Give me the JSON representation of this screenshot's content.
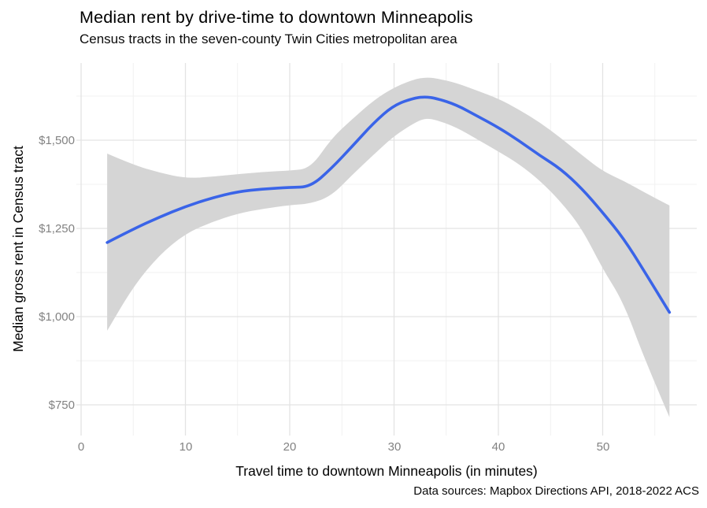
{
  "figure": {
    "title": "Median rent by drive-time to downtown Minneapolis",
    "subtitle": "Census tracts in the seven-county Twin Cities metropolitan area",
    "caption": "Data sources: Mapbox Directions API, 2018-2022 ACS"
  },
  "chart_data": {
    "type": "line",
    "title": "Median rent by drive-time to downtown Minneapolis",
    "subtitle": "Census tracts in the seven-county Twin Cities metropolitan area",
    "caption": "Data sources: Mapbox Directions API, 2018-2022 ACS",
    "xlabel": "Travel time to downtown Minneapolis (in minutes)",
    "ylabel": "Median gross rent in Census tract",
    "xlim": [
      -0.5,
      59
    ],
    "ylim": [
      660,
      1720
    ],
    "grid": "major+minor",
    "legend": "none",
    "x_ticks": {
      "major_values": [
        0,
        10,
        20,
        30,
        40,
        50
      ],
      "minor_values": [
        5,
        15,
        25,
        35,
        45,
        55
      ],
      "labels": [
        "0",
        "10",
        "20",
        "30",
        "40",
        "50"
      ]
    },
    "y_ticks": {
      "major_values": [
        750,
        1000,
        1250,
        1500
      ],
      "minor_values": [
        875,
        1125,
        1375,
        1625
      ],
      "labels": [
        "$750",
        "$1,000",
        "$1,250",
        "$1,500"
      ]
    },
    "x": [
      2.5,
      5,
      7.5,
      10,
      12.5,
      15,
      17.5,
      20,
      22,
      24,
      26,
      28,
      30,
      32,
      33,
      34,
      36,
      38,
      40,
      42,
      44,
      46,
      48,
      50,
      52,
      54,
      56.4
    ],
    "series": [
      {
        "name": "loess-smoothed median rent",
        "type": "line",
        "values": [
          1210,
          1248,
          1282,
          1312,
          1336,
          1354,
          1362,
          1366,
          1368,
          1420,
          1483,
          1548,
          1600,
          1620,
          1623,
          1619,
          1600,
          1568,
          1536,
          1498,
          1456,
          1418,
          1363,
          1295,
          1222,
          1128,
          1012
        ]
      },
      {
        "name": "confidence band",
        "type": "band",
        "upper": [
          1462,
          1430,
          1408,
          1392,
          1396,
          1404,
          1410,
          1414,
          1420,
          1505,
          1560,
          1612,
          1650,
          1673,
          1678,
          1676,
          1662,
          1640,
          1618,
          1586,
          1550,
          1506,
          1458,
          1412,
          1385,
          1352,
          1315
        ],
        "lower": [
          960,
          1085,
          1175,
          1235,
          1268,
          1292,
          1306,
          1316,
          1320,
          1342,
          1402,
          1458,
          1512,
          1550,
          1562,
          1558,
          1536,
          1502,
          1468,
          1432,
          1385,
          1325,
          1250,
          1135,
          1040,
          880,
          715
        ]
      }
    ],
    "colors": {
      "line": "#3A64E8",
      "band": "#D5D5D5",
      "grid_major": "#E3E3E3",
      "grid_minor": "#F1F1F1",
      "tick_text": "#828282",
      "text": "#000000"
    }
  }
}
